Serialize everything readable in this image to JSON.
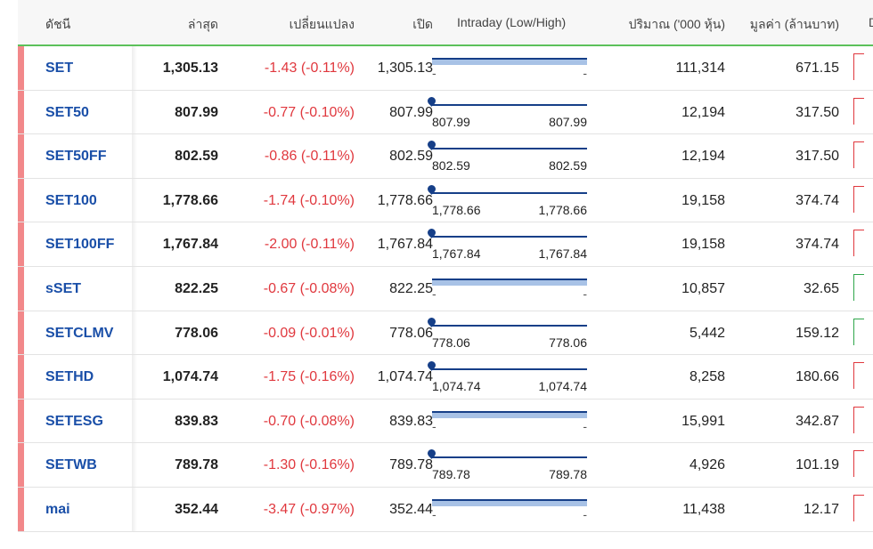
{
  "headers": {
    "index": "ดัชนี",
    "last": "ล่าสุด",
    "change": "เปลี่ยนแปลง",
    "open": "เปิด",
    "intraday": "Intraday (Low/High)",
    "volume": "ปริมาณ ('000 หุ้น)",
    "value": "มูลค่า (ล้านบาท)",
    "extra": "D"
  },
  "colors": {
    "accent_line": "#5cc15a",
    "down": "#e0383e",
    "up": "#2ea64a",
    "link": "#1a4fa8",
    "row_marker": "#f2888a"
  },
  "rows": [
    {
      "name": "SET",
      "last": "1,305.13",
      "change": "-1.43 (-0.11%)",
      "open": "1,305.13",
      "low": "-",
      "high": "-",
      "flat": true,
      "volume": "111,314",
      "value": "671.15",
      "trend": "down"
    },
    {
      "name": "SET50",
      "last": "807.99",
      "change": "-0.77 (-0.10%)",
      "open": "807.99",
      "low": "807.99",
      "high": "807.99",
      "flat": false,
      "volume": "12,194",
      "value": "317.50",
      "trend": "down"
    },
    {
      "name": "SET50FF",
      "last": "802.59",
      "change": "-0.86 (-0.11%)",
      "open": "802.59",
      "low": "802.59",
      "high": "802.59",
      "flat": false,
      "volume": "12,194",
      "value": "317.50",
      "trend": "down"
    },
    {
      "name": "SET100",
      "last": "1,778.66",
      "change": "-1.74 (-0.10%)",
      "open": "1,778.66",
      "low": "1,778.66",
      "high": "1,778.66",
      "flat": false,
      "volume": "19,158",
      "value": "374.74",
      "trend": "down"
    },
    {
      "name": "SET100FF",
      "last": "1,767.84",
      "change": "-2.00 (-0.11%)",
      "open": "1,767.84",
      "low": "1,767.84",
      "high": "1,767.84",
      "flat": false,
      "volume": "19,158",
      "value": "374.74",
      "trend": "down"
    },
    {
      "name": "sSET",
      "last": "822.25",
      "change": "-0.67 (-0.08%)",
      "open": "822.25",
      "low": "-",
      "high": "-",
      "flat": true,
      "volume": "10,857",
      "value": "32.65",
      "trend": "up"
    },
    {
      "name": "SETCLMV",
      "last": "778.06",
      "change": "-0.09 (-0.01%)",
      "open": "778.06",
      "low": "778.06",
      "high": "778.06",
      "flat": false,
      "volume": "5,442",
      "value": "159.12",
      "trend": "up"
    },
    {
      "name": "SETHD",
      "last": "1,074.74",
      "change": "-1.75 (-0.16%)",
      "open": "1,074.74",
      "low": "1,074.74",
      "high": "1,074.74",
      "flat": false,
      "volume": "8,258",
      "value": "180.66",
      "trend": "down"
    },
    {
      "name": "SETESG",
      "last": "839.83",
      "change": "-0.70 (-0.08%)",
      "open": "839.83",
      "low": "-",
      "high": "-",
      "flat": true,
      "volume": "15,991",
      "value": "342.87",
      "trend": "down"
    },
    {
      "name": "SETWB",
      "last": "789.78",
      "change": "-1.30 (-0.16%)",
      "open": "789.78",
      "low": "789.78",
      "high": "789.78",
      "flat": false,
      "volume": "4,926",
      "value": "101.19",
      "trend": "down"
    },
    {
      "name": "mai",
      "last": "352.44",
      "change": "-3.47 (-0.97%)",
      "open": "352.44",
      "low": "-",
      "high": "-",
      "flat": true,
      "volume": "11,438",
      "value": "12.17",
      "trend": "down"
    }
  ]
}
